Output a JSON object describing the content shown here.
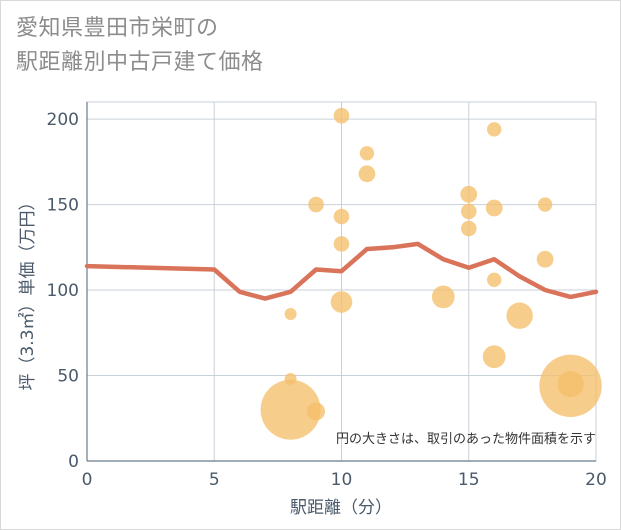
{
  "title_line1": "愛知県豊田市栄町の",
  "title_line2": "駅距離別中古戸建て価格",
  "chart_data": {
    "type": "scatter",
    "title": "愛知県豊田市栄町の駅距離別中古戸建て価格",
    "xlabel": "駅距離（分）",
    "ylabel": "坪（3.3㎡）単価（万円）",
    "xlim": [
      0,
      20
    ],
    "ylim": [
      0,
      210
    ],
    "xticks": [
      0,
      5,
      10,
      15,
      20
    ],
    "yticks": [
      0,
      50,
      100,
      150,
      200
    ],
    "grid": true,
    "note": "円の大きさは、取引のあった物件面積を示す",
    "points_color": "#f5bf6a",
    "line_color": "#d9735a",
    "points": [
      {
        "x": 8,
        "y": 86,
        "size": 1
      },
      {
        "x": 8,
        "y": 48,
        "size": 1
      },
      {
        "x": 8,
        "y": 30,
        "size": 5
      },
      {
        "x": 9,
        "y": 150,
        "size": 1.3
      },
      {
        "x": 9,
        "y": 29,
        "size": 1.5
      },
      {
        "x": 10,
        "y": 202,
        "size": 1.3
      },
      {
        "x": 10,
        "y": 143,
        "size": 1.3
      },
      {
        "x": 10,
        "y": 127,
        "size": 1.3
      },
      {
        "x": 10,
        "y": 93,
        "size": 1.8
      },
      {
        "x": 11,
        "y": 180,
        "size": 1.2
      },
      {
        "x": 11,
        "y": 168,
        "size": 1.4
      },
      {
        "x": 14,
        "y": 96,
        "size": 1.9
      },
      {
        "x": 15,
        "y": 156,
        "size": 1.4
      },
      {
        "x": 15,
        "y": 146,
        "size": 1.3
      },
      {
        "x": 15,
        "y": 136,
        "size": 1.3
      },
      {
        "x": 16,
        "y": 194,
        "size": 1.2
      },
      {
        "x": 16,
        "y": 148,
        "size": 1.4
      },
      {
        "x": 16,
        "y": 106,
        "size": 1.2
      },
      {
        "x": 16,
        "y": 61,
        "size": 1.9
      },
      {
        "x": 17,
        "y": 85,
        "size": 2.2
      },
      {
        "x": 18,
        "y": 150,
        "size": 1.2
      },
      {
        "x": 18,
        "y": 118,
        "size": 1.4
      },
      {
        "x": 19,
        "y": 45,
        "size": 2.2
      },
      {
        "x": 19,
        "y": 44,
        "size": 5.2
      }
    ],
    "line": [
      {
        "x": 0,
        "y": 114
      },
      {
        "x": 5,
        "y": 112
      },
      {
        "x": 6,
        "y": 99
      },
      {
        "x": 7,
        "y": 95
      },
      {
        "x": 8,
        "y": 99
      },
      {
        "x": 9,
        "y": 112
      },
      {
        "x": 10,
        "y": 111
      },
      {
        "x": 11,
        "y": 124
      },
      {
        "x": 12,
        "y": 125
      },
      {
        "x": 13,
        "y": 127
      },
      {
        "x": 14,
        "y": 118
      },
      {
        "x": 15,
        "y": 113
      },
      {
        "x": 16,
        "y": 118
      },
      {
        "x": 17,
        "y": 108
      },
      {
        "x": 18,
        "y": 100
      },
      {
        "x": 19,
        "y": 96
      },
      {
        "x": 20,
        "y": 99
      }
    ]
  }
}
